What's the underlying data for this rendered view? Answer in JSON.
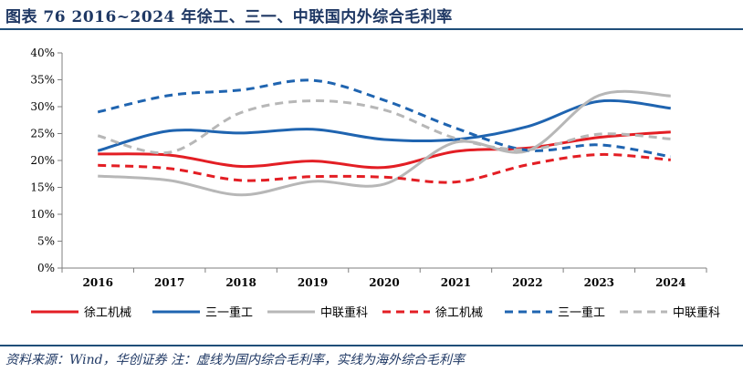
{
  "title": "图表 76   2016~2024 年徐工、三一、中联国内外综合毛利率",
  "source": "资料来源：Wind，华创证券  注：虚线为国内综合毛利率，实线为海外综合毛利率",
  "colors": {
    "red": "#e31e24",
    "blue": "#1f64b0",
    "gray": "#b7b7b7",
    "rule": "#1f4e79",
    "text": "#1f3864"
  },
  "chart_data": {
    "type": "line",
    "title": "",
    "xlabel": "",
    "ylabel": "",
    "categories": [
      "2016",
      "2017",
      "2018",
      "2019",
      "2020",
      "2021",
      "2022",
      "2023",
      "2024"
    ],
    "ylim": [
      0,
      40
    ],
    "yticks": [
      "0%",
      "5%",
      "10%",
      "15%",
      "20%",
      "25%",
      "30%",
      "35%",
      "40%"
    ],
    "series": [
      {
        "name": "徐工机械",
        "style": "solid",
        "color": "#e31e24",
        "values": [
          21.2,
          21.0,
          18.9,
          19.9,
          18.7,
          21.7,
          22.3,
          24.3,
          25.3
        ]
      },
      {
        "name": "三一重工",
        "style": "solid",
        "color": "#1f64b0",
        "values": [
          21.8,
          25.5,
          25.1,
          25.8,
          23.9,
          23.9,
          26.3,
          31.0,
          29.7
        ]
      },
      {
        "name": "中联重科",
        "style": "solid",
        "color": "#b7b7b7",
        "values": [
          17.1,
          16.3,
          13.6,
          16.1,
          15.6,
          23.4,
          21.8,
          32.1,
          32.0
        ]
      },
      {
        "name": "徐工机械",
        "style": "dashed",
        "color": "#e31e24",
        "values": [
          19.1,
          18.5,
          16.3,
          17.0,
          16.9,
          16.0,
          19.2,
          21.1,
          20.1
        ]
      },
      {
        "name": "三一重工",
        "style": "dashed",
        "color": "#1f64b0",
        "values": [
          29.0,
          32.1,
          33.1,
          34.9,
          31.2,
          26.0,
          21.9,
          22.9,
          20.7
        ]
      },
      {
        "name": "中联重科",
        "style": "dashed",
        "color": "#b7b7b7",
        "values": [
          24.6,
          21.5,
          28.9,
          31.1,
          29.4,
          24.1,
          22.0,
          24.9,
          24.0
        ]
      }
    ],
    "legend": "bottom"
  }
}
